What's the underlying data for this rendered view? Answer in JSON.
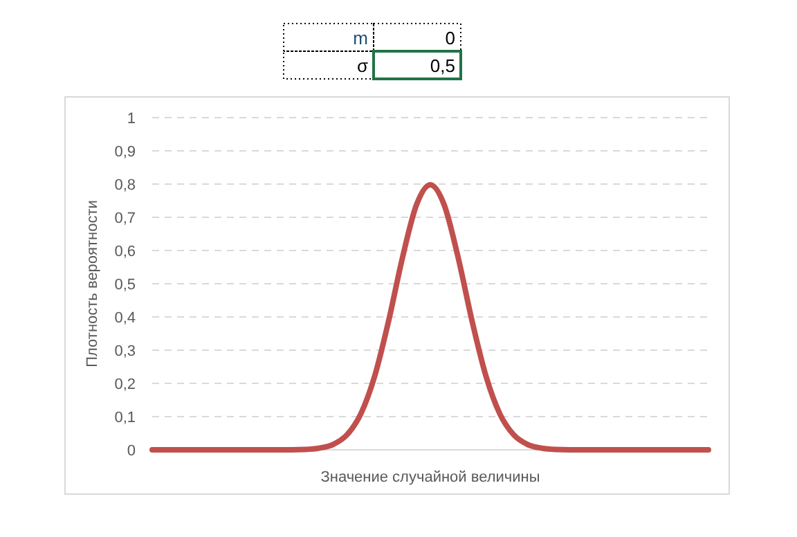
{
  "chart_data": {
    "type": "line",
    "xlabel": "Значение случайной величины",
    "ylabel": "Плотность вероятности",
    "annotations": [
      "m",
      "0",
      "σ",
      "0,5"
    ],
    "categories": [
      null,
      null,
      null,
      null,
      null,
      null,
      null,
      null,
      null,
      null,
      null,
      null,
      null,
      null,
      null,
      null,
      null,
      null,
      null,
      null,
      null,
      null,
      null,
      null,
      null,
      null,
      null,
      null,
      null,
      null,
      null,
      null,
      null,
      null,
      null,
      null,
      null,
      null,
      null,
      null,
      null
    ],
    "series": [
      {
        "color": "#c0504d",
        "values": [
          0,
          0,
          0,
          0,
          0,
          0,
          0,
          0,
          0,
          0,
          0,
          0.001,
          0.005,
          0.016,
          0.045,
          0.108,
          0.222,
          0.388,
          0.579,
          0.737,
          0.798,
          0.737,
          0.579,
          0.388,
          0.222,
          0.108,
          0.045,
          0.016,
          0.005,
          0.001,
          0,
          0,
          0,
          0,
          0,
          0,
          0,
          0,
          0,
          0,
          0
        ]
      }
    ],
    "ylim": [
      0,
      1
    ],
    "yticks": [
      0,
      {
        "value": 0.1,
        "label": "0,1"
      },
      {
        "value": 0.2,
        "label": "0,2"
      },
      {
        "value": 0.3,
        "label": "0,3"
      },
      {
        "value": 0.4,
        "label": "0,4"
      },
      {
        "value": 0.5,
        "label": "0,5"
      },
      {
        "value": 0.6,
        "label": "0,6"
      },
      {
        "value": 0.7,
        "label": "0,7"
      },
      {
        "value": 0.8,
        "label": "0,8"
      },
      {
        "value": 0.9,
        "label": "0,9"
      },
      1
    ],
    "grid": "y",
    "marker": "none",
    "line_style": "solid"
  }
}
